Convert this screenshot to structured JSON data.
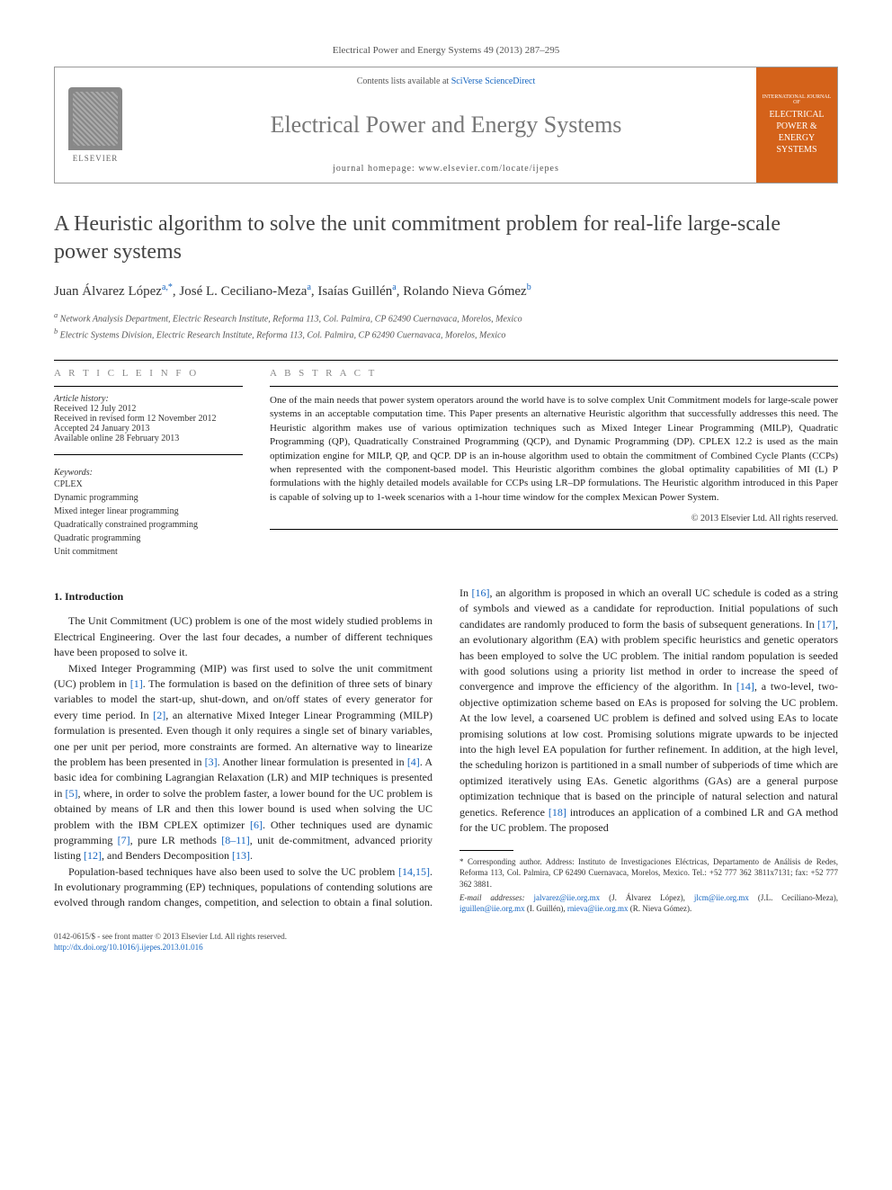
{
  "citation": "Electrical Power and Energy Systems 49 (2013) 287–295",
  "header": {
    "contents_prefix": "Contents lists available at ",
    "contents_link": "SciVerse ScienceDirect",
    "journal_name": "Electrical Power and Energy Systems",
    "homepage": "journal homepage: www.elsevier.com/locate/ijepes",
    "elsevier_label": "ELSEVIER",
    "cover_top": "INTERNATIONAL JOURNAL OF",
    "cover_main": "ELECTRICAL POWER & ENERGY SYSTEMS"
  },
  "title": "A Heuristic algorithm to solve the unit commitment problem for real-life large-scale power systems",
  "authors_html": "Juan Álvarez López",
  "authors": [
    {
      "name": "Juan Álvarez López",
      "aff": "a,",
      "corr": "*"
    },
    {
      "name": "José L. Ceciliano-Meza",
      "aff": "a"
    },
    {
      "name": "Isaías Guillén",
      "aff": "a"
    },
    {
      "name": "Rolando Nieva Gómez",
      "aff": "b"
    }
  ],
  "affiliations": {
    "a": "Network Analysis Department, Electric Research Institute, Reforma 113, Col. Palmira, CP 62490 Cuernavaca, Morelos, Mexico",
    "b": "Electric Systems Division, Electric Research Institute, Reforma 113, Col. Palmira, CP 62490 Cuernavaca, Morelos, Mexico"
  },
  "article_info": {
    "heading": "A R T I C L E   I N F O",
    "history_label": "Article history:",
    "history": [
      "Received 12 July 2012",
      "Received in revised form 12 November 2012",
      "Accepted 24 January 2013",
      "Available online 28 February 2013"
    ],
    "keywords_label": "Keywords:",
    "keywords": [
      "CPLEX",
      "Dynamic programming",
      "Mixed integer linear programming",
      "Quadratically constrained programming",
      "Quadratic programming",
      "Unit commitment"
    ]
  },
  "abstract": {
    "heading": "A B S T R A C T",
    "text": "One of the main needs that power system operators around the world have is to solve complex Unit Commitment models for large-scale power systems in an acceptable computation time. This Paper presents an alternative Heuristic algorithm that successfully addresses this need. The Heuristic algorithm makes use of various optimization techniques such as Mixed Integer Linear Programming (MILP), Quadratic Programming (QP), Quadratically Constrained Programming (QCP), and Dynamic Programming (DP). CPLEX 12.2 is used as the main optimization engine for MILP, QP, and QCP. DP is an in-house algorithm used to obtain the commitment of Combined Cycle Plants (CCPs) when represented with the component-based model. This Heuristic algorithm combines the global optimality capabilities of MI (L) P formulations with the highly detailed models available for CCPs using LR–DP formulations. The Heuristic algorithm introduced in this Paper is capable of solving up to 1-week scenarios with a 1-hour time window for the complex Mexican Power System.",
    "copyright": "© 2013 Elsevier Ltd. All rights reserved."
  },
  "section1": {
    "title": "1. Introduction",
    "p1": "The Unit Commitment (UC) problem is one of the most widely studied problems in Electrical Engineering. Over the last four decades, a number of different techniques have been proposed to solve it.",
    "p2": "Mixed Integer Programming (MIP) was first used to solve the unit commitment (UC) problem in [1]. The formulation is based on the definition of three sets of binary variables to model the start-up, shut-down, and on/off states of every generator for every time period. In [2], an alternative Mixed Integer Linear Programming (MILP) formulation is presented. Even though it only requires a single set of binary variables, one per unit per period, more constraints are formed. An alternative way to linearize the problem has been presented in [3]. Another linear formulation is presented in [4]. A basic idea for combining Lagrangian Relaxation (LR) and MIP techniques is presented in [5], where, in order to solve the problem faster, a lower bound for the UC problem is obtained by means of LR and then this lower bound is used when solving the UC problem with the IBM CPLEX optimizer [6]. Other techniques used are dynamic programming [7], pure LR methods [8–11], unit de-commitment, advanced priority listing [12], and Benders Decomposition [13].",
    "p3": "Population-based techniques have also been used to solve the UC problem [14,15]. In evolutionary programming (EP) techniques, populations of contending solutions are evolved through random changes, competition, and selection to obtain a final solution. In [16], an algorithm is proposed in which an overall UC schedule is coded as a string of symbols and viewed as a candidate for reproduction. Initial populations of such candidates are randomly produced to form the basis of subsequent generations. In [17], an evolutionary algorithm (EA) with problem specific heuristics and genetic operators has been employed to solve the UC problem. The initial random population is seeded with good solutions using a priority list method in order to increase the speed of convergence and improve the efficiency of the algorithm. In [14], a two-level, two-objective optimization scheme based on EAs is proposed for solving the UC problem. At the low level, a coarsened UC problem is defined and solved using EAs to locate promising solutions at low cost. Promising solutions migrate upwards to be injected into the high level EA population for further refinement. In addition, at the high level, the scheduling horizon is partitioned in a small number of subperiods of time which are optimized iteratively using EAs. Genetic algorithms (GAs) are a general purpose optimization technique that is based on the principle of natural selection and natural genetics. Reference [18] introduces an application of a combined LR and GA method for the UC problem. The proposed"
  },
  "footnotes": {
    "corr": "* Corresponding author. Address: Instituto de Investigaciones Eléctricas, Departamento de Análisis de Redes, Reforma 113, Col. Palmira, CP 62490 Cuernavaca, Morelos, Mexico. Tel.: +52 777 362 3811x7131; fax: +52 777 362 3881.",
    "emails_label": "E-mail addresses:",
    "emails": "jalvarez@iie.org.mx (J. Álvarez López), jlcm@iie.org.mx (J.L. Ceciliano-Meza), iguillen@iie.org.mx (I. Guillén), rnieva@iie.org.mx (R. Nieva Gómez)."
  },
  "bottom": {
    "left1": "0142-0615/$ - see front matter © 2013 Elsevier Ltd. All rights reserved.",
    "left2": "http://dx.doi.org/10.1016/j.ijepes.2013.01.016"
  },
  "colors": {
    "link": "#1565c0",
    "journal_gray": "#777777",
    "cover_orange": "#d4621a"
  }
}
